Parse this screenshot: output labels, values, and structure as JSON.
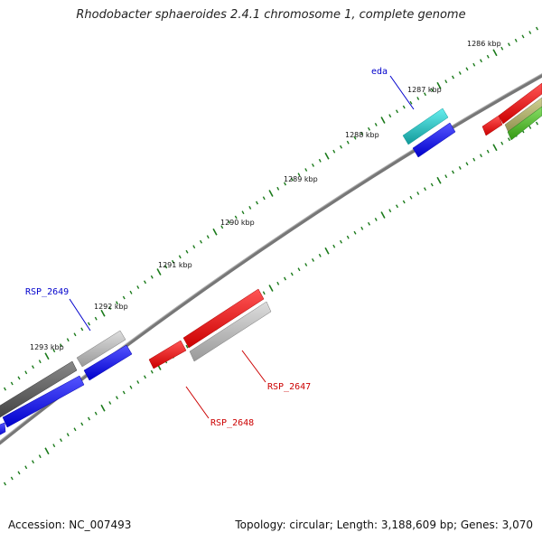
{
  "title": "Rhodobacter sphaeroides 2.4.1 chromosome 1, complete genome",
  "footer": {
    "accession": "Accession: NC_007493",
    "summary": "Topology: circular; Length: 3,188,609 bp; Genes: 3,070"
  },
  "scale_labels": [
    "1286 kbp",
    "1287 kbp",
    "1288 kbp",
    "1289 kbp",
    "1290 kbp",
    "1291 kbp",
    "1292 kbp",
    "1293 kbp"
  ],
  "gene_labels": [
    {
      "text": "eda",
      "color": "#0000cc"
    },
    {
      "text": "RSP_2649",
      "color": "#0000cc"
    },
    {
      "text": "RSP_2647",
      "color": "#cc0000"
    },
    {
      "text": "RSP_2648",
      "color": "#cc0000"
    }
  ],
  "colors": {
    "backbone": "#7a7a7a",
    "tick": "#1a7a1a",
    "forward_blue": "#0000ee",
    "red": "#ee0000",
    "grey": "#bbbbbb",
    "dark_grey": "#606060",
    "cyan": "#22cccc",
    "olive": "#b0b070",
    "green": "#44bb22"
  }
}
